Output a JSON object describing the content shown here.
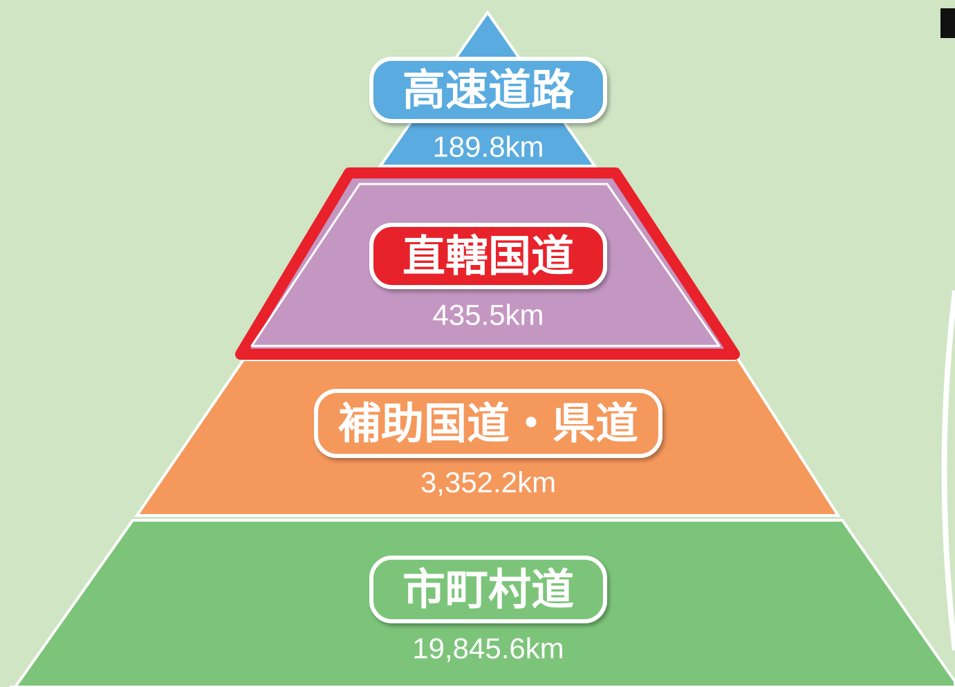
{
  "levels": [
    {
      "label": "高速道路",
      "length": "189.8km"
    },
    {
      "label": "直轄国道",
      "length": "435.5km"
    },
    {
      "label": "補助国道・県道",
      "length": "3,352.2km"
    },
    {
      "label": "市町村道",
      "length": "19,845.6km"
    }
  ]
}
